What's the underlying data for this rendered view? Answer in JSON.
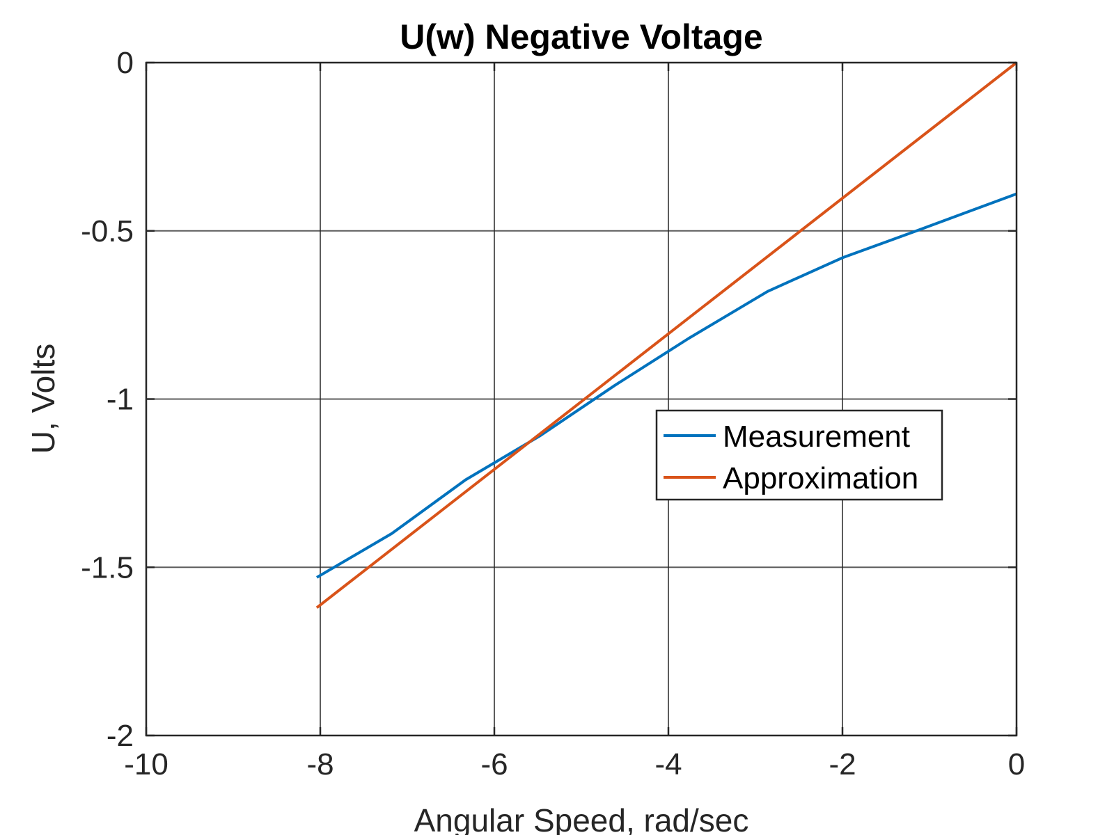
{
  "chart_data": {
    "type": "line",
    "title": "U(w) Negative Voltage",
    "xlabel": "Angular Speed, rad/sec",
    "ylabel": "U, Volts",
    "xlim": [
      -10,
      0
    ],
    "ylim": [
      -2,
      0
    ],
    "xticks": [
      -10,
      -8,
      -6,
      -4,
      -2,
      0
    ],
    "xtick_labels": [
      "-10",
      "-8",
      "-6",
      "-4",
      "-2",
      "0"
    ],
    "yticks": [
      0,
      -0.5,
      -1,
      -1.5,
      -2
    ],
    "ytick_labels": [
      "0",
      "-0.5",
      "-1",
      "-1.5",
      "-2"
    ],
    "grid": true,
    "legend_position": "center-right",
    "series": [
      {
        "name": "Measurement",
        "color": "#0072BD",
        "x": [
          -8.04,
          -7.18,
          -6.33,
          -5.48,
          -4.62,
          -3.77,
          -2.86,
          -2.0,
          -1.15,
          0.0
        ],
        "y": [
          -1.53,
          -1.4,
          -1.24,
          -1.11,
          -0.96,
          -0.82,
          -0.68,
          -0.58,
          -0.5,
          -0.39
        ]
      },
      {
        "name": "Approximation",
        "color": "#D95319",
        "x": [
          -8.04,
          0.0
        ],
        "y": [
          -1.62,
          0.0
        ]
      }
    ]
  }
}
